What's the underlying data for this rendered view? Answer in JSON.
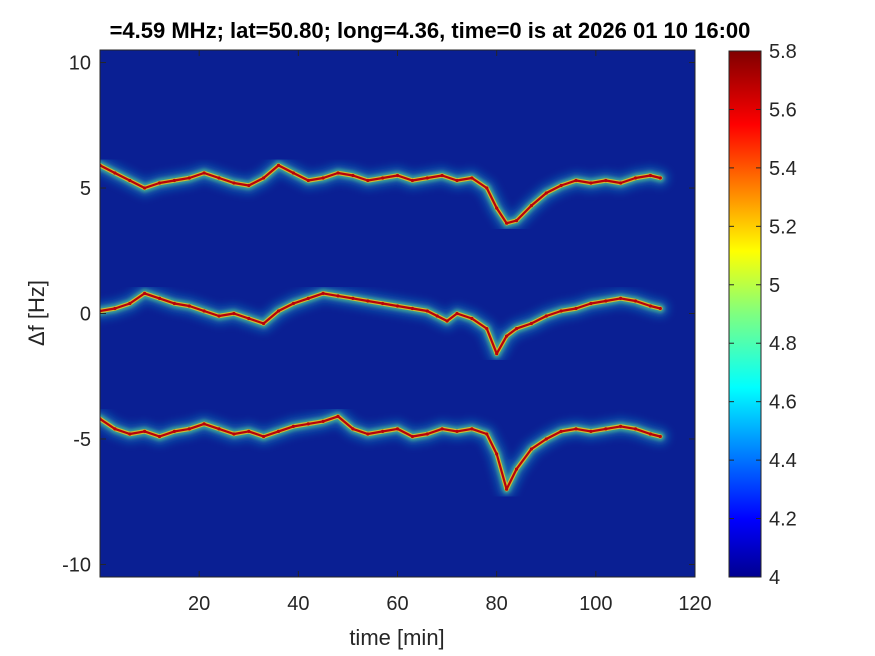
{
  "chart_data": {
    "type": "heatmap",
    "title": "=4.59 MHz;  lat=50.80; long=4.36, time=0 is at 2026 01 10 16:00",
    "xlabel": "time [min]",
    "ylabel": "Δf [Hz]",
    "xlim": [
      0,
      120
    ],
    "ylim": [
      -10.5,
      10.5
    ],
    "x_ticks": [
      "20",
      "40",
      "60",
      "80",
      "100",
      "120"
    ],
    "y_ticks": [
      "10",
      "5",
      "0",
      "-5",
      "-10"
    ],
    "colorbar": {
      "range": [
        4,
        5.8
      ],
      "ticks": [
        "4",
        "4.2",
        "4.4",
        "4.6",
        "4.8",
        "5",
        "5.2",
        "5.4",
        "5.6",
        "5.8"
      ],
      "colormap": "jet"
    },
    "traces": [
      {
        "points": [
          [
            0,
            5.9
          ],
          [
            3,
            5.6
          ],
          [
            6,
            5.3
          ],
          [
            9,
            5.0
          ],
          [
            12,
            5.2
          ],
          [
            15,
            5.3
          ],
          [
            18,
            5.4
          ],
          [
            21,
            5.6
          ],
          [
            24,
            5.4
          ],
          [
            27,
            5.2
          ],
          [
            30,
            5.1
          ],
          [
            33,
            5.4
          ],
          [
            36,
            5.9
          ],
          [
            39,
            5.6
          ],
          [
            42,
            5.3
          ],
          [
            45,
            5.4
          ],
          [
            48,
            5.6
          ],
          [
            51,
            5.5
          ],
          [
            54,
            5.3
          ],
          [
            57,
            5.4
          ],
          [
            60,
            5.5
          ],
          [
            63,
            5.3
          ],
          [
            66,
            5.4
          ],
          [
            69,
            5.5
          ],
          [
            72,
            5.3
          ],
          [
            75,
            5.4
          ],
          [
            78,
            5.0
          ],
          [
            80,
            4.2
          ],
          [
            82,
            3.6
          ],
          [
            84,
            3.7
          ],
          [
            87,
            4.3
          ],
          [
            90,
            4.8
          ],
          [
            93,
            5.1
          ],
          [
            96,
            5.3
          ],
          [
            99,
            5.2
          ],
          [
            102,
            5.3
          ],
          [
            105,
            5.2
          ],
          [
            108,
            5.4
          ],
          [
            111,
            5.5
          ],
          [
            113,
            5.4
          ]
        ]
      },
      {
        "points": [
          [
            0,
            0.1
          ],
          [
            3,
            0.2
          ],
          [
            6,
            0.4
          ],
          [
            9,
            0.8
          ],
          [
            12,
            0.6
          ],
          [
            15,
            0.4
          ],
          [
            18,
            0.3
          ],
          [
            21,
            0.1
          ],
          [
            24,
            -0.1
          ],
          [
            27,
            0.0
          ],
          [
            30,
            -0.2
          ],
          [
            33,
            -0.4
          ],
          [
            36,
            0.1
          ],
          [
            39,
            0.4
          ],
          [
            42,
            0.6
          ],
          [
            45,
            0.8
          ],
          [
            48,
            0.7
          ],
          [
            51,
            0.6
          ],
          [
            54,
            0.5
          ],
          [
            57,
            0.4
          ],
          [
            60,
            0.3
          ],
          [
            63,
            0.2
          ],
          [
            66,
            0.1
          ],
          [
            68,
            -0.1
          ],
          [
            70,
            -0.3
          ],
          [
            72,
            0.0
          ],
          [
            75,
            -0.2
          ],
          [
            78,
            -0.6
          ],
          [
            80,
            -1.6
          ],
          [
            82,
            -0.9
          ],
          [
            84,
            -0.6
          ],
          [
            87,
            -0.4
          ],
          [
            90,
            -0.1
          ],
          [
            93,
            0.1
          ],
          [
            96,
            0.2
          ],
          [
            99,
            0.4
          ],
          [
            102,
            0.5
          ],
          [
            105,
            0.6
          ],
          [
            108,
            0.5
          ],
          [
            111,
            0.3
          ],
          [
            113,
            0.2
          ]
        ]
      },
      {
        "points": [
          [
            0,
            -4.2
          ],
          [
            3,
            -4.6
          ],
          [
            6,
            -4.8
          ],
          [
            9,
            -4.7
          ],
          [
            12,
            -4.9
          ],
          [
            15,
            -4.7
          ],
          [
            18,
            -4.6
          ],
          [
            21,
            -4.4
          ],
          [
            24,
            -4.6
          ],
          [
            27,
            -4.8
          ],
          [
            30,
            -4.7
          ],
          [
            33,
            -4.9
          ],
          [
            36,
            -4.7
          ],
          [
            39,
            -4.5
          ],
          [
            42,
            -4.4
          ],
          [
            45,
            -4.3
          ],
          [
            48,
            -4.1
          ],
          [
            51,
            -4.6
          ],
          [
            54,
            -4.8
          ],
          [
            57,
            -4.7
          ],
          [
            60,
            -4.6
          ],
          [
            63,
            -4.9
          ],
          [
            66,
            -4.8
          ],
          [
            69,
            -4.6
          ],
          [
            72,
            -4.7
          ],
          [
            75,
            -4.6
          ],
          [
            78,
            -4.8
          ],
          [
            80,
            -5.6
          ],
          [
            82,
            -7.0
          ],
          [
            84,
            -6.2
          ],
          [
            87,
            -5.4
          ],
          [
            90,
            -5.0
          ],
          [
            93,
            -4.7
          ],
          [
            96,
            -4.6
          ],
          [
            99,
            -4.7
          ],
          [
            102,
            -4.6
          ],
          [
            105,
            -4.5
          ],
          [
            108,
            -4.6
          ],
          [
            111,
            -4.8
          ],
          [
            113,
            -4.9
          ]
        ]
      }
    ],
    "colors": {
      "background": "#0a1f93",
      "trace": "#b8020a"
    }
  }
}
